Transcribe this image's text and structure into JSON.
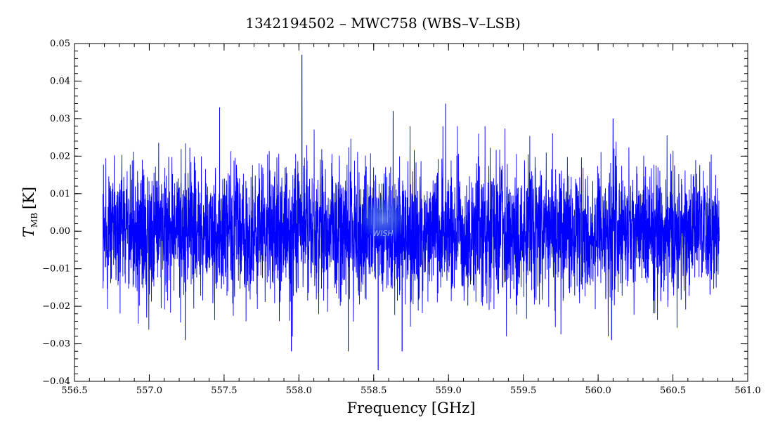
{
  "chart_data": {
    "type": "line",
    "title": "1342194502 – MWC758 (WBS–V–LSB)",
    "xlabel": "Frequency [GHz]",
    "ylabel_main": "T",
    "ylabel_sub": "MB",
    "ylabel_unit": "[K]",
    "xlim": [
      556.5,
      561.0
    ],
    "ylim": [
      -0.04,
      0.05
    ],
    "x_ticks": [
      "556.5",
      "557.0",
      "557.5",
      "558.0",
      "558.5",
      "559.0",
      "559.5",
      "560.0",
      "560.5",
      "561.0"
    ],
    "y_ticks": [
      "−0.04",
      "−0.03",
      "−0.02",
      "−0.01",
      "0.00",
      "0.01",
      "0.02",
      "0.03",
      "0.04",
      "0.05"
    ],
    "grid": false,
    "series": [
      {
        "color": "#0000ff",
        "x_range": [
          556.69,
          560.81
        ],
        "noise_rms": 0.009,
        "notable_peaks": [
          {
            "x": 558.02,
            "y": 0.047
          },
          {
            "x": 558.53,
            "y": -0.037
          },
          {
            "x": 557.47,
            "y": 0.033
          },
          {
            "x": 558.98,
            "y": 0.034
          },
          {
            "x": 558.63,
            "y": 0.032
          },
          {
            "x": 557.95,
            "y": -0.032
          },
          {
            "x": 558.33,
            "y": -0.032
          },
          {
            "x": 558.69,
            "y": -0.032
          },
          {
            "x": 560.09,
            "y": -0.029
          },
          {
            "x": 560.1,
            "y": 0.03
          },
          {
            "x": 557.24,
            "y": -0.029
          }
        ]
      }
    ],
    "watermark": "WISH"
  }
}
